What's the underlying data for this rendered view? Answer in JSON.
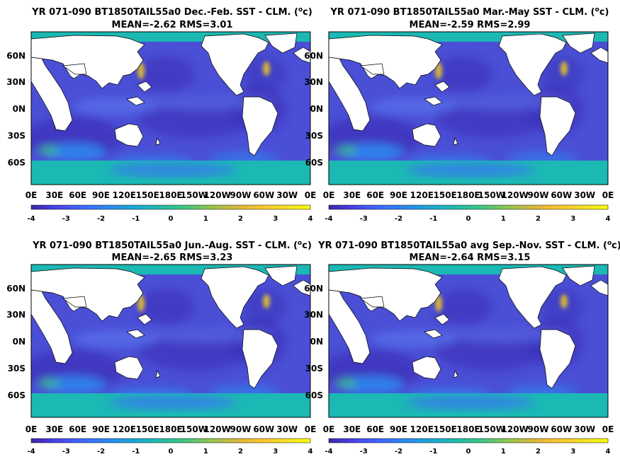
{
  "chart_data": [
    {
      "type": "heatmap",
      "title_line1": "YR 071-090 BT1850TAIL55a0  Dec.-Feb. SST - CLM. (",
      "units": "oc",
      "title_line2": "MEAN=-2.62   RMS=3.01",
      "mean": -2.62,
      "rms": 3.01,
      "x_ticks": [
        "0E",
        "30E",
        "60E",
        "90E",
        "120E",
        "150E",
        "180E",
        "150W",
        "120W",
        "90W",
        "60W",
        "30W",
        "0E"
      ],
      "y_ticks": [
        "60N",
        "30N",
        "0N",
        "30S",
        "60S"
      ],
      "colorbar_ticks": [
        "-4",
        "-3",
        "-2",
        "-1",
        "0",
        "1",
        "2",
        "3",
        "4"
      ],
      "colorbar_range": [
        -4,
        4
      ]
    },
    {
      "type": "heatmap",
      "title_line1": "YR 071-090 BT1850TAIL55a0  Mar.-May SST - CLM. (",
      "units": "oc",
      "title_line2": "MEAN=-2.59   RMS=2.99",
      "mean": -2.59,
      "rms": 2.99,
      "x_ticks": [
        "0E",
        "30E",
        "60E",
        "90E",
        "120E",
        "150E",
        "180E",
        "150W",
        "120W",
        "90W",
        "60W",
        "30W",
        "0E"
      ],
      "y_ticks": [
        "60N",
        "30N",
        "0N",
        "30S",
        "60S"
      ],
      "colorbar_ticks": [
        "-4",
        "-3",
        "-2",
        "-1",
        "0",
        "1",
        "2",
        "3",
        "4"
      ],
      "colorbar_range": [
        -4,
        4
      ]
    },
    {
      "type": "heatmap",
      "title_line1": "YR 071-090 BT1850TAIL55a0 Jun.-Aug. SST - CLM. (",
      "units": "oc",
      "title_line2": "MEAN=-2.65   RMS=3.23",
      "mean": -2.65,
      "rms": 3.23,
      "x_ticks": [
        "0E",
        "30E",
        "60E",
        "90E",
        "120E",
        "150E",
        "180E",
        "150W",
        "120W",
        "90W",
        "60W",
        "30W",
        "0E"
      ],
      "y_ticks": [
        "60N",
        "30N",
        "0N",
        "30S",
        "60S"
      ],
      "colorbar_ticks": [
        "-4",
        "-3",
        "-2",
        "-1",
        "0",
        "1",
        "2",
        "3",
        "4"
      ],
      "colorbar_range": [
        -4,
        4
      ]
    },
    {
      "type": "heatmap",
      "title_line1": "YR 071-090 BT1850TAIL55a0 avg Sep.-Nov. SST - CLM. (",
      "units": "oc",
      "title_line2": "MEAN=-2.64   RMS=3.15",
      "mean": -2.64,
      "rms": 3.15,
      "x_ticks": [
        "0E",
        "30E",
        "60E",
        "90E",
        "120E",
        "150E",
        "180E",
        "150W",
        "120W",
        "90W",
        "60W",
        "30W",
        "0E"
      ],
      "y_ticks": [
        "60N",
        "30N",
        "0N",
        "30S",
        "60S"
      ],
      "colorbar_ticks": [
        "-4",
        "-3",
        "-2",
        "-1",
        "0",
        "1",
        "2",
        "3",
        "4"
      ],
      "colorbar_range": [
        -4,
        4
      ]
    }
  ],
  "colors": {
    "land": "#ffffff",
    "ice_band": "#1bb8b4",
    "ocean_base": "#4a4fd6",
    "colormap": [
      "#3e26a8",
      "#4743e8",
      "#4066fe",
      "#2c87f1",
      "#1ca5d9",
      "#1fbbb0",
      "#3ec682",
      "#8fc74f",
      "#d6b73a",
      "#fec332",
      "#f5e024",
      "#f9fb0e"
    ]
  }
}
